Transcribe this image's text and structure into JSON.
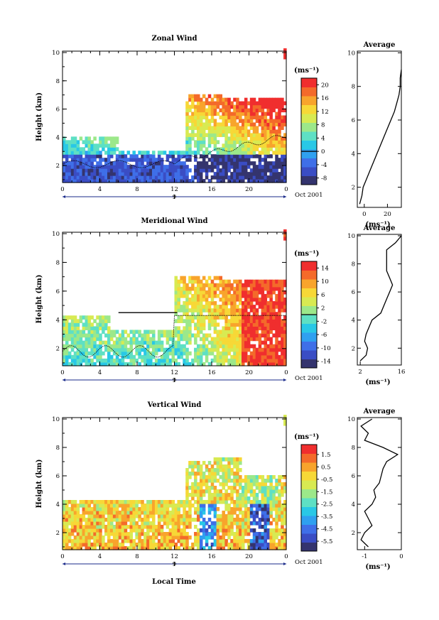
{
  "figure": {
    "bottom_xlabel": "Local Time"
  },
  "colors": {
    "colormap": [
      "#34346e",
      "#3a4dc4",
      "#3f6fe8",
      "#2fa0f0",
      "#29c8e6",
      "#5ee0c4",
      "#9ce88a",
      "#d8ea52",
      "#f7d837",
      "#f8a42c",
      "#f46a2a",
      "#f02e2e"
    ]
  },
  "chart_data": [
    {
      "type": "heatmap",
      "title": "Zonal Wind",
      "ylabel": "Height (km)",
      "x_ticks": [
        "0",
        "4",
        "8",
        "12",
        "16",
        "20",
        "0"
      ],
      "x_range": [
        0,
        24
      ],
      "y_ticks": [
        "2",
        "4",
        "6",
        "8",
        "10"
      ],
      "y_range": [
        0.8,
        10.1
      ],
      "date_label": "Oct 2001",
      "date_marker": "9",
      "units": "(ms⁻¹)",
      "colorbar_ticks": [
        "20",
        "16",
        "12",
        "8",
        "4",
        "0",
        "-4",
        "-8"
      ],
      "colorbar_range": [
        -10,
        22
      ],
      "contour_level": 0,
      "field": "zonal",
      "inset": {
        "title": "Average",
        "x_ticks": [
          "0",
          "20"
        ],
        "x_range": [
          -6,
          32
        ],
        "y_ticks": [
          "2",
          "4",
          "6",
          "8",
          "10"
        ],
        "units": "(ms⁻¹)",
        "profile": [
          [
            1,
            -4
          ],
          [
            1.5,
            -2
          ],
          [
            2,
            -1
          ],
          [
            2.5,
            2
          ],
          [
            3,
            5
          ],
          [
            3.5,
            8
          ],
          [
            4,
            11
          ],
          [
            4.5,
            14
          ],
          [
            5,
            17
          ],
          [
            5.5,
            20
          ],
          [
            6,
            23
          ],
          [
            6.5,
            26
          ],
          [
            7,
            28
          ],
          [
            7.5,
            30
          ],
          [
            8,
            31
          ],
          [
            8.5,
            31
          ],
          [
            9,
            32
          ]
        ]
      }
    },
    {
      "type": "heatmap",
      "title": "Meridional Wind",
      "ylabel": "Height (km)",
      "x_ticks": [
        "0",
        "4",
        "8",
        "12",
        "16",
        "20",
        "0"
      ],
      "x_range": [
        0,
        24
      ],
      "y_ticks": [
        "2",
        "4",
        "6",
        "8",
        "10"
      ],
      "y_range": [
        0.8,
        10.1
      ],
      "date_label": "Oct 2001",
      "date_marker": "9",
      "units": "(ms⁻¹)",
      "colorbar_ticks": [
        "14",
        "10",
        "6",
        "2",
        "-2",
        "-6",
        "-10",
        "-14"
      ],
      "colorbar_range": [
        -16,
        16
      ],
      "contour_level": 0,
      "field": "meridional",
      "inset": {
        "title": "Average",
        "x_ticks": [
          "2",
          "16"
        ],
        "x_range": [
          1,
          16
        ],
        "y_ticks": [
          "2",
          "4",
          "6",
          "8",
          "10"
        ],
        "units": "(ms⁻¹)",
        "profile": [
          [
            1.1,
            2
          ],
          [
            1.5,
            4
          ],
          [
            2,
            4.5
          ],
          [
            2.5,
            3.5
          ],
          [
            3,
            4
          ],
          [
            3.5,
            5
          ],
          [
            4,
            6
          ],
          [
            4.5,
            9
          ],
          [
            5,
            10
          ],
          [
            5.5,
            11
          ],
          [
            6,
            12
          ],
          [
            6.5,
            13
          ],
          [
            7,
            12
          ],
          [
            7.5,
            11
          ],
          [
            8,
            11
          ],
          [
            8.5,
            11
          ],
          [
            9,
            11
          ],
          [
            9.5,
            14
          ],
          [
            10,
            16
          ]
        ]
      }
    },
    {
      "type": "heatmap",
      "title": "Vertical Wind",
      "ylabel": "Height (km)",
      "x_ticks": [
        "0",
        "4",
        "8",
        "12",
        "16",
        "20",
        "0"
      ],
      "x_range": [
        0,
        24
      ],
      "y_ticks": [
        "2",
        "4",
        "6",
        "8",
        "10"
      ],
      "y_range": [
        0.8,
        10.1
      ],
      "date_label": "Oct 2001",
      "date_marker": "9",
      "units": "(ms⁻¹)",
      "colorbar_ticks": [
        "1.5",
        "0.5",
        "-0.5",
        "-1.5",
        "-2.5",
        "-3.5",
        "-4.5",
        "-5.5"
      ],
      "colorbar_range": [
        -6.3,
        2.3
      ],
      "contour_level": null,
      "field": "vertical",
      "inset": {
        "title": "Average",
        "x_ticks": [
          "-1",
          "0"
        ],
        "x_range": [
          -1.2,
          0
        ],
        "y_ticks": [
          "2",
          "4",
          "6",
          "8",
          "10"
        ],
        "units": "(ms⁻¹)",
        "profile": [
          [
            1,
            -0.9
          ],
          [
            1.5,
            -1.1
          ],
          [
            2,
            -1.0
          ],
          [
            2.5,
            -0.8
          ],
          [
            3,
            -0.9
          ],
          [
            3.5,
            -1.0
          ],
          [
            4,
            -0.8
          ],
          [
            4.5,
            -0.7
          ],
          [
            5,
            -0.75
          ],
          [
            5.5,
            -0.6
          ],
          [
            6,
            -0.55
          ],
          [
            6.5,
            -0.5
          ],
          [
            7,
            -0.4
          ],
          [
            7.5,
            -0.1
          ],
          [
            8,
            -0.5
          ],
          [
            8.5,
            -1.0
          ],
          [
            9,
            -0.9
          ],
          [
            9.5,
            -1.1
          ],
          [
            10,
            -0.8
          ]
        ]
      }
    }
  ]
}
